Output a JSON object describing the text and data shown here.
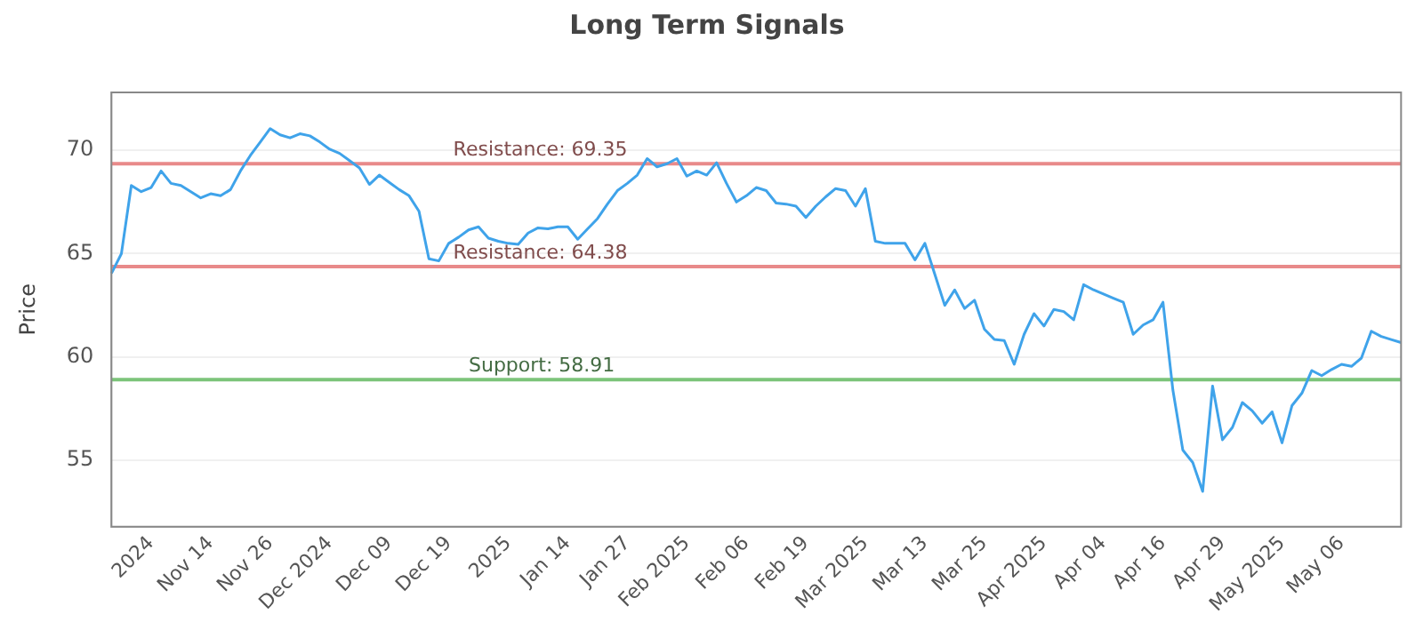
{
  "chart_data": {
    "type": "line",
    "title": "Long Term Signals",
    "ylabel": "Price",
    "categories": [
      null,
      null,
      null,
      null,
      "2024",
      null,
      null,
      null,
      null,
      null,
      "Nov 14",
      null,
      null,
      null,
      null,
      null,
      "Nov 26",
      null,
      null,
      null,
      null,
      null,
      "Dec 2024",
      null,
      null,
      null,
      null,
      null,
      "Dec 09",
      null,
      null,
      null,
      null,
      null,
      "Dec 19",
      null,
      null,
      null,
      null,
      null,
      "2025",
      null,
      null,
      null,
      null,
      null,
      "Jan 14",
      null,
      null,
      null,
      null,
      null,
      "Jan 27",
      null,
      null,
      null,
      null,
      null,
      "Feb 2025",
      null,
      null,
      null,
      null,
      null,
      "Feb 06",
      null,
      null,
      null,
      null,
      null,
      "Feb 19",
      null,
      null,
      null,
      null,
      null,
      "Mar 2025",
      null,
      null,
      null,
      null,
      null,
      "Mar 13",
      null,
      null,
      null,
      null,
      null,
      "Mar 25",
      null,
      null,
      null,
      null,
      null,
      "Apr 2025",
      null,
      null,
      null,
      null,
      null,
      "Apr 04",
      null,
      null,
      null,
      null,
      null,
      "Apr 16",
      null,
      null,
      null,
      null,
      null,
      "Apr 29",
      null,
      null,
      null,
      null,
      null,
      "May 2025",
      null,
      null,
      null,
      null,
      null,
      "May 06",
      null,
      null,
      null,
      null,
      null,
      null
    ],
    "series": [
      {
        "color": "#3fa3ea",
        "values": [
          64.05,
          65.0,
          68.3,
          68.0,
          68.2,
          69.0,
          68.4,
          68.3,
          68.0,
          67.7,
          67.9,
          67.8,
          68.1,
          69.0,
          69.75,
          70.4,
          71.05,
          70.75,
          70.6,
          70.8,
          70.7,
          70.4,
          70.05,
          69.85,
          69.5,
          69.15,
          68.35,
          68.8,
          68.45,
          68.1,
          67.8,
          67.05,
          64.75,
          64.65,
          65.5,
          65.8,
          66.15,
          66.3,
          65.75,
          65.6,
          65.5,
          65.45,
          66.0,
          66.25,
          66.2,
          66.3,
          66.3,
          65.7,
          66.2,
          66.7,
          67.4,
          68.05,
          68.4,
          68.8,
          69.6,
          69.2,
          69.35,
          69.6,
          68.75,
          69.0,
          68.8,
          69.4,
          68.4,
          67.5,
          67.8,
          68.2,
          68.05,
          67.45,
          67.4,
          67.3,
          66.75,
          67.3,
          67.75,
          68.15,
          68.05,
          67.3,
          68.15,
          65.6,
          65.5,
          65.5,
          65.5,
          64.7,
          65.5,
          64.0,
          62.5,
          63.25,
          62.35,
          62.75,
          61.35,
          60.85,
          60.8,
          59.65,
          61.1,
          62.1,
          61.5,
          62.3,
          62.2,
          61.8,
          63.5,
          63.25,
          63.05,
          62.85,
          62.65,
          61.1,
          61.55,
          61.8,
          62.65,
          58.4,
          55.5,
          54.9,
          53.5,
          58.6,
          56.0,
          56.6,
          57.8,
          57.4,
          56.8,
          57.35,
          55.85,
          57.65,
          58.25,
          59.35,
          59.1,
          59.4,
          59.65,
          59.55,
          59.95,
          61.25,
          61.0,
          60.85,
          60.7
        ]
      }
    ],
    "ylim": [
      51.8,
      72.8
    ],
    "yticks": [
      55,
      60,
      65,
      70
    ],
    "grid": "y",
    "legend": false,
    "marker": "none",
    "line_style": "solid",
    "ref_lines": [
      {
        "axis": "y",
        "value": 69.35,
        "label": "Resistance: 69.35",
        "color": "#e88a8a"
      },
      {
        "axis": "y",
        "value": 64.38,
        "label": "Resistance: 64.38",
        "color": "#e88a8a"
      },
      {
        "axis": "y",
        "value": 58.91,
        "label": "Support: 58.91",
        "color": "#7cc47a"
      }
    ]
  }
}
